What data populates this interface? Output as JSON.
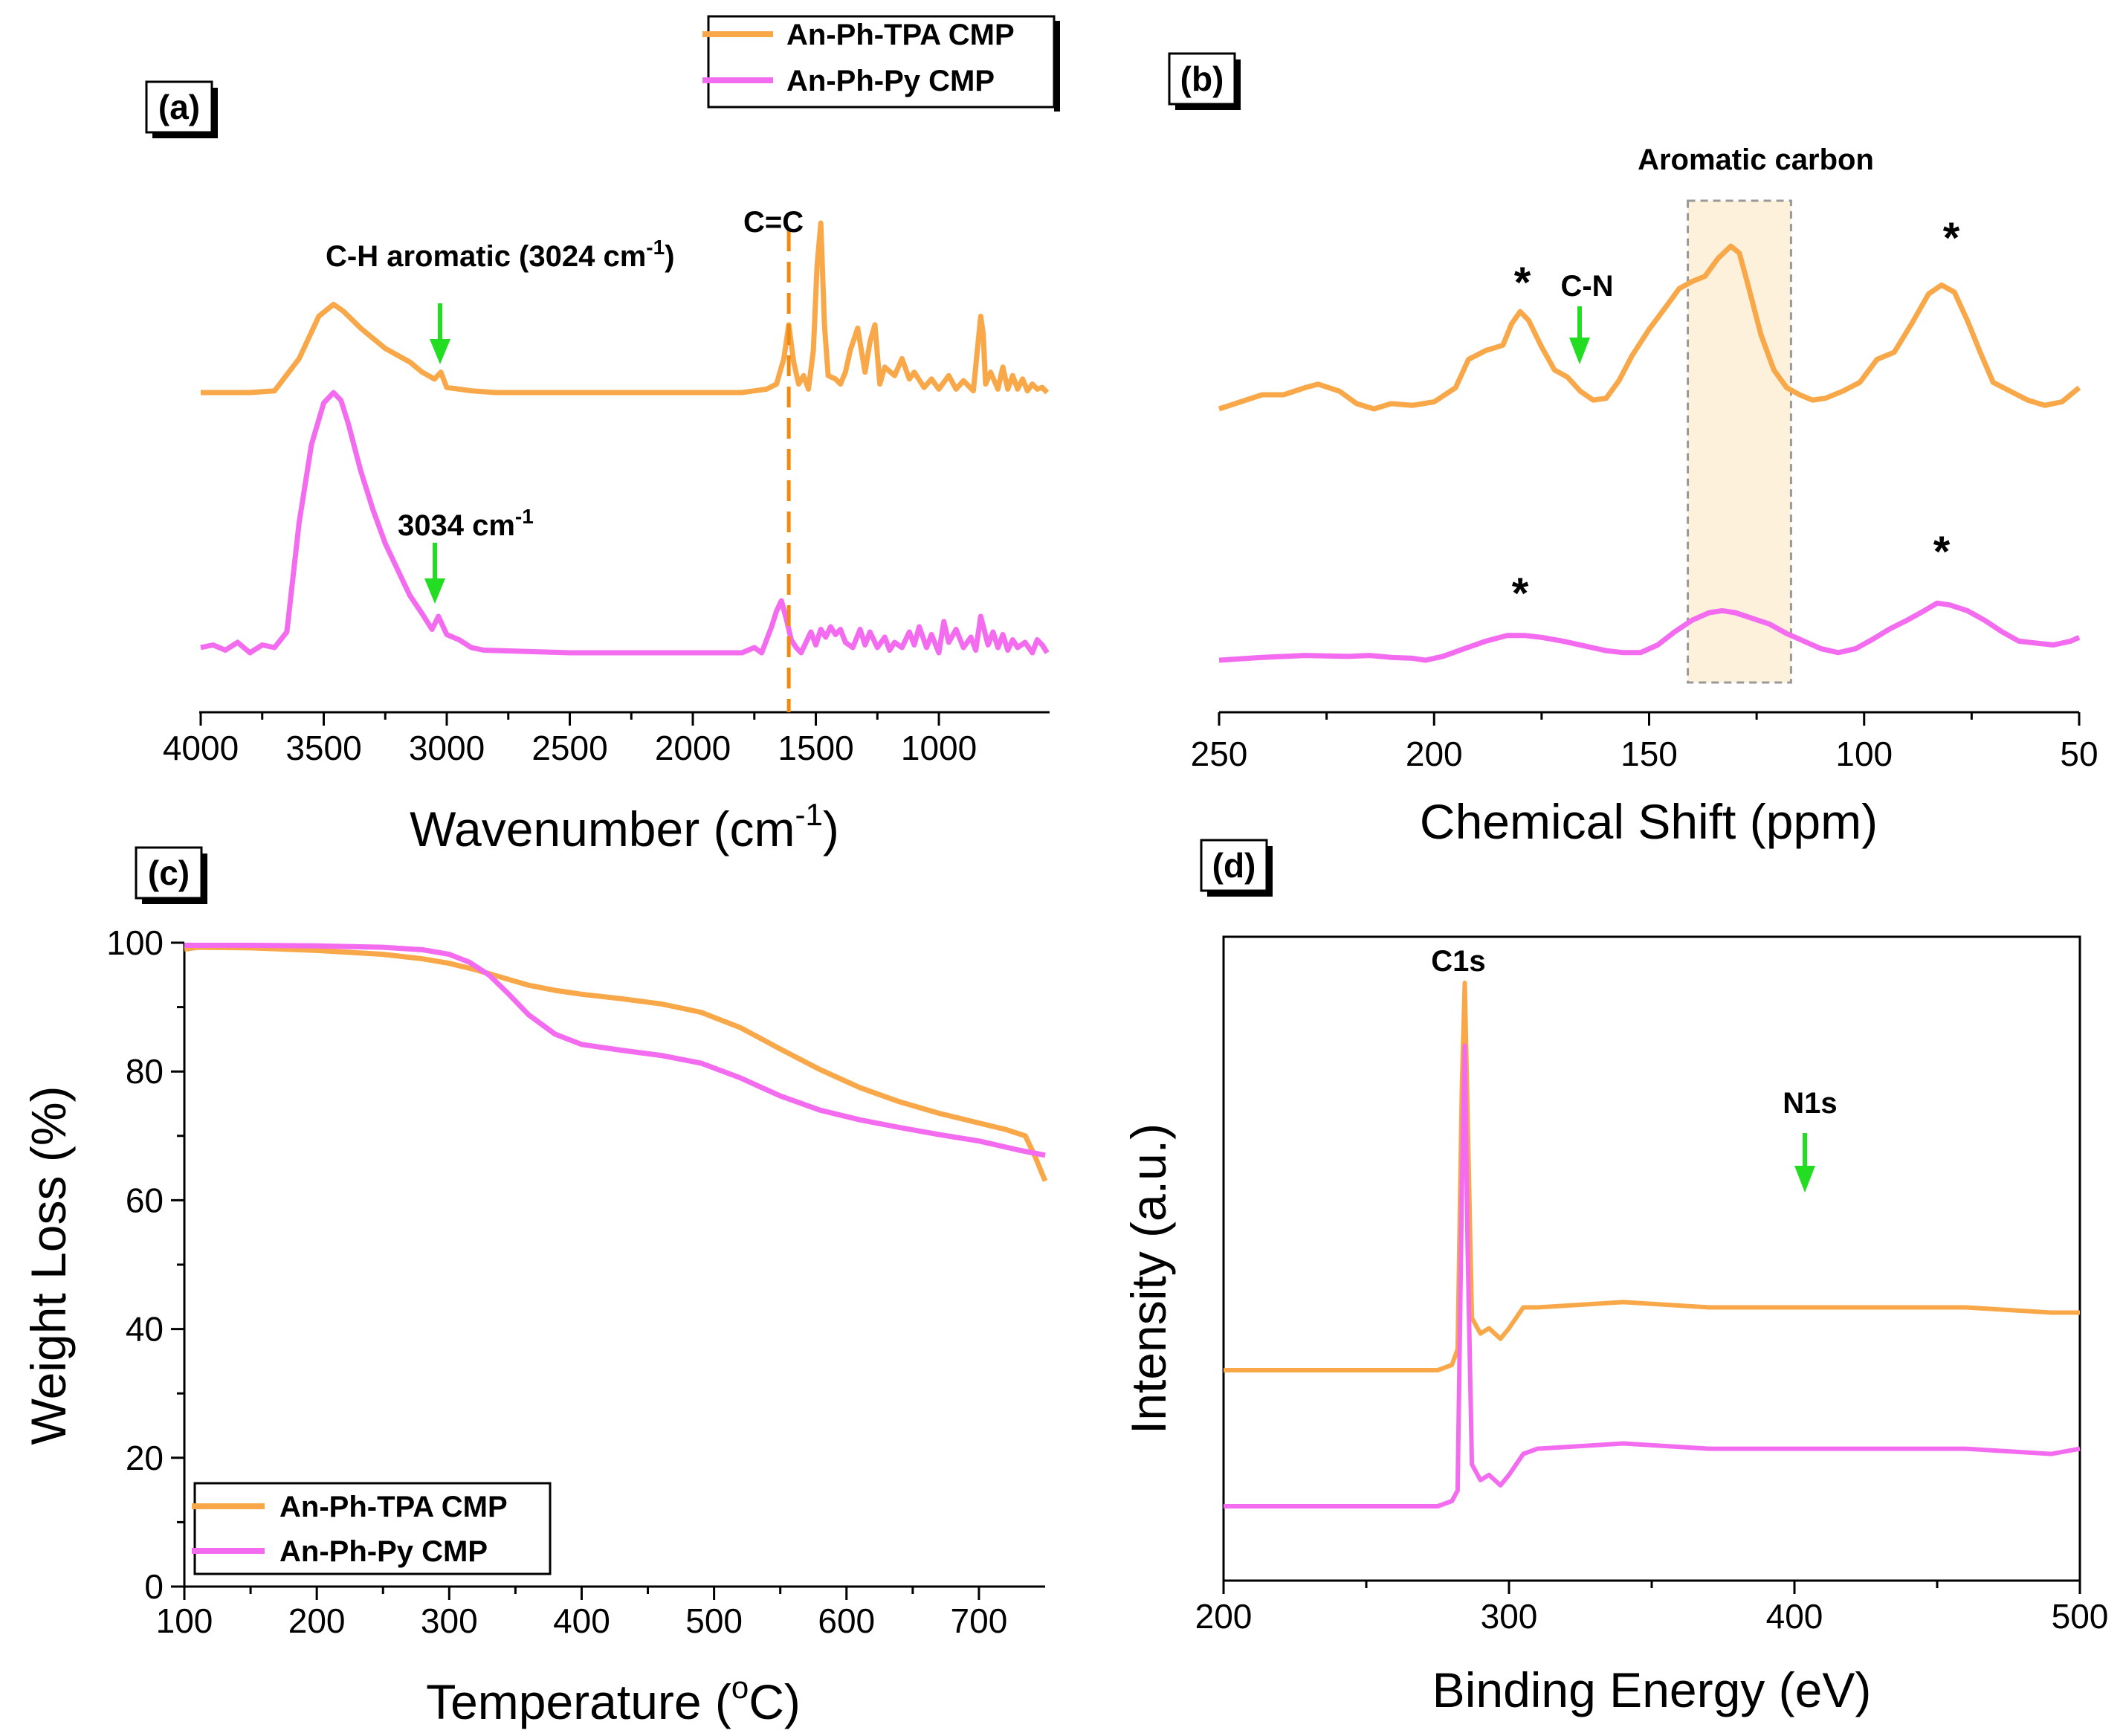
{
  "colors": {
    "orange": "#f8a848",
    "magenta": "#f36cf0",
    "arrow": "#22dd22",
    "highlight_fill": "#fdf1dc",
    "highlight_stroke": "#999999"
  },
  "legend_top": {
    "entries": [
      "An-Ph-TPA CMP",
      "An-Ph-Py CMP"
    ]
  },
  "panels": {
    "a": {
      "tag": "(a)",
      "annotations": {
        "ch_aromatic": "C-H aromatic (3024 cm",
        "ch_aromatic_sup": "-1",
        "ch_aromatic_close": ")",
        "cc": "C=C",
        "py_peak": "3034 cm",
        "py_peak_sup": "-1"
      }
    },
    "b": {
      "tag": "(b)",
      "annotations": {
        "aromatic_carbon": "Aromatic carbon",
        "cn": "C-N",
        "star": "*"
      }
    },
    "c": {
      "tag": "(c)",
      "legend": [
        "An-Ph-TPA CMP",
        "An-Ph-Py CMP"
      ]
    },
    "d": {
      "tag": "(d)",
      "annotations": {
        "c1s": "C1s",
        "n1s": "N1s"
      }
    }
  },
  "chart_data": [
    {
      "id": "a",
      "type": "line",
      "title": "",
      "xlabel": "Wavenumber (cm",
      "xlabel_sup": "-1",
      "xlabel_close": ")",
      "ylabel": "",
      "xlim": [
        4000,
        550
      ],
      "xticks": [
        4000,
        3500,
        3000,
        2500,
        2000,
        1500,
        1000
      ],
      "xtick_labels": [
        "4000",
        "3500",
        "3000",
        "2500",
        "2000",
        "1500",
        "1000"
      ],
      "series": [
        {
          "name": "An-Ph-TPA CMP",
          "x": [
            4000,
            3800,
            3700,
            3600,
            3520,
            3460,
            3420,
            3350,
            3250,
            3150,
            3100,
            3050,
            3024,
            3000,
            2950,
            2900,
            2800,
            2500,
            2000,
            1800,
            1700,
            1660,
            1630,
            1610,
            1590,
            1570,
            1550,
            1530,
            1510,
            1495,
            1480,
            1465,
            1450,
            1420,
            1400,
            1380,
            1360,
            1330,
            1300,
            1280,
            1260,
            1240,
            1220,
            1180,
            1150,
            1120,
            1100,
            1060,
            1030,
            1000,
            960,
            930,
            900,
            860,
            830,
            820,
            810,
            790,
            760,
            740,
            720,
            700,
            680,
            660,
            640,
            620,
            600,
            580,
            560
          ],
          "y": [
            0.0,
            0.0,
            0.01,
            0.2,
            0.45,
            0.52,
            0.48,
            0.38,
            0.26,
            0.18,
            0.12,
            0.08,
            0.12,
            0.03,
            0.02,
            0.01,
            0.0,
            0.0,
            0.0,
            0.0,
            0.02,
            0.05,
            0.2,
            0.4,
            0.18,
            0.05,
            0.1,
            0.02,
            0.25,
            0.75,
            1.0,
            0.4,
            0.1,
            0.08,
            0.05,
            0.12,
            0.25,
            0.38,
            0.12,
            0.3,
            0.4,
            0.05,
            0.15,
            0.1,
            0.2,
            0.08,
            0.12,
            0.03,
            0.08,
            0.02,
            0.1,
            0.02,
            0.07,
            0.01,
            0.45,
            0.35,
            0.05,
            0.12,
            0.02,
            0.15,
            0.02,
            0.1,
            0.02,
            0.08,
            0.01,
            0.05,
            0.02,
            0.03,
            0.0
          ]
        },
        {
          "name": "An-Ph-Py CMP",
          "x": [
            4000,
            3950,
            3900,
            3850,
            3800,
            3750,
            3700,
            3650,
            3600,
            3550,
            3500,
            3460,
            3430,
            3400,
            3350,
            3300,
            3250,
            3200,
            3150,
            3100,
            3060,
            3034,
            3000,
            2950,
            2900,
            2850,
            2500,
            2000,
            1800,
            1750,
            1720,
            1700,
            1680,
            1660,
            1640,
            1620,
            1600,
            1580,
            1560,
            1540,
            1520,
            1500,
            1480,
            1460,
            1440,
            1420,
            1400,
            1380,
            1350,
            1320,
            1300,
            1280,
            1250,
            1220,
            1200,
            1180,
            1150,
            1120,
            1100,
            1080,
            1050,
            1030,
            1000,
            980,
            960,
            930,
            900,
            870,
            850,
            830,
            800,
            780,
            760,
            740,
            720,
            700,
            680,
            650,
            620,
            600,
            580,
            560
          ],
          "y": [
            0.02,
            0.03,
            0.01,
            0.04,
            0.0,
            0.03,
            0.02,
            0.08,
            0.5,
            0.8,
            0.96,
            1.0,
            0.97,
            0.88,
            0.7,
            0.55,
            0.42,
            0.32,
            0.22,
            0.15,
            0.09,
            0.14,
            0.07,
            0.05,
            0.02,
            0.01,
            0.0,
            0.0,
            0.0,
            0.02,
            0.0,
            0.05,
            0.1,
            0.16,
            0.2,
            0.13,
            0.05,
            0.02,
            0.0,
            0.04,
            0.08,
            0.03,
            0.09,
            0.06,
            0.1,
            0.07,
            0.09,
            0.04,
            0.02,
            0.09,
            0.03,
            0.08,
            0.02,
            0.06,
            0.01,
            0.04,
            0.02,
            0.08,
            0.03,
            0.1,
            0.02,
            0.07,
            0.0,
            0.12,
            0.04,
            0.09,
            0.02,
            0.06,
            0.01,
            0.14,
            0.03,
            0.08,
            0.02,
            0.07,
            0.01,
            0.05,
            0.02,
            0.04,
            0.0,
            0.05,
            0.03,
            0.0
          ]
        }
      ]
    },
    {
      "id": "b",
      "type": "line",
      "title": "",
      "xlabel": "Chemical Shift (ppm)",
      "ylabel": "",
      "xlim": [
        250,
        50
      ],
      "xticks": [
        250,
        200,
        150,
        100,
        50
      ],
      "xtick_labels": [
        "250",
        "200",
        "150",
        "100",
        "50"
      ],
      "highlight_range": [
        141,
        117
      ],
      "series": [
        {
          "name": "An-Ph-TPA CMP",
          "x": [
            250,
            245,
            240,
            235,
            230,
            227,
            222,
            218,
            214,
            210,
            205,
            200,
            195,
            192,
            188,
            184,
            182,
            180,
            178,
            175,
            172,
            169,
            166,
            163,
            160,
            157,
            154,
            150,
            146,
            143,
            140,
            137,
            134,
            131,
            129,
            127,
            124,
            121,
            118,
            115,
            112,
            109,
            105,
            101,
            97,
            93,
            89,
            85,
            82,
            79,
            76,
            73,
            70,
            66,
            62,
            58,
            54,
            50
          ],
          "y": [
            0.0,
            0.04,
            0.08,
            0.08,
            0.12,
            0.14,
            0.1,
            0.03,
            0.0,
            0.03,
            0.02,
            0.04,
            0.12,
            0.28,
            0.33,
            0.36,
            0.48,
            0.55,
            0.5,
            0.35,
            0.22,
            0.18,
            0.1,
            0.05,
            0.06,
            0.16,
            0.3,
            0.45,
            0.58,
            0.68,
            0.72,
            0.75,
            0.85,
            0.92,
            0.88,
            0.7,
            0.42,
            0.22,
            0.12,
            0.08,
            0.05,
            0.06,
            0.1,
            0.15,
            0.28,
            0.32,
            0.48,
            0.65,
            0.7,
            0.66,
            0.5,
            0.32,
            0.15,
            0.1,
            0.05,
            0.02,
            0.04,
            0.12
          ]
        },
        {
          "name": "An-Ph-Py CMP",
          "x": [
            250,
            240,
            230,
            220,
            215,
            210,
            205,
            202,
            198,
            193,
            188,
            183,
            179,
            175,
            170,
            165,
            160,
            156,
            152,
            148,
            144,
            140,
            136,
            133,
            130,
            126,
            122,
            118,
            114,
            110,
            106,
            102,
            98,
            94,
            90,
            86,
            83,
            80,
            76,
            72,
            68,
            64,
            60,
            56,
            52,
            50
          ],
          "y": [
            0.0,
            0.03,
            0.05,
            0.04,
            0.05,
            0.03,
            0.02,
            0.0,
            0.04,
            0.12,
            0.2,
            0.26,
            0.26,
            0.24,
            0.2,
            0.15,
            0.1,
            0.08,
            0.08,
            0.16,
            0.3,
            0.42,
            0.5,
            0.52,
            0.5,
            0.44,
            0.38,
            0.28,
            0.2,
            0.12,
            0.08,
            0.12,
            0.22,
            0.33,
            0.42,
            0.52,
            0.6,
            0.58,
            0.52,
            0.42,
            0.3,
            0.2,
            0.18,
            0.16,
            0.2,
            0.24
          ]
        }
      ]
    },
    {
      "id": "c",
      "type": "line",
      "title": "",
      "xlabel": "Temperature (",
      "xlabel_sup": "o",
      "xlabel_close": "C)",
      "ylabel": "Weight Loss (%)",
      "xlim": [
        100,
        750
      ],
      "ylim": [
        0,
        100
      ],
      "xticks": [
        100,
        200,
        300,
        400,
        500,
        600,
        700
      ],
      "xtick_labels": [
        "100",
        "200",
        "300",
        "400",
        "500",
        "600",
        "700"
      ],
      "yticks": [
        0,
        20,
        40,
        60,
        80,
        100
      ],
      "ytick_labels": [
        "0",
        "20",
        "40",
        "60",
        "80",
        "100"
      ],
      "series": [
        {
          "name": "An-Ph-TPA CMP",
          "x": [
            100,
            110,
            150,
            200,
            250,
            280,
            300,
            320,
            340,
            360,
            380,
            400,
            430,
            460,
            490,
            520,
            550,
            580,
            610,
            640,
            670,
            700,
            720,
            735,
            742,
            750
          ],
          "y": [
            99.0,
            99.3,
            99.2,
            98.8,
            98.2,
            97.5,
            96.8,
            95.8,
            94.6,
            93.4,
            92.6,
            92.0,
            91.3,
            90.5,
            89.2,
            86.8,
            83.5,
            80.3,
            77.5,
            75.3,
            73.5,
            72.0,
            71.0,
            70.0,
            67.0,
            63.0
          ]
        },
        {
          "name": "An-Ph-Py CMP",
          "x": [
            100,
            150,
            200,
            250,
            280,
            300,
            315,
            330,
            345,
            360,
            380,
            400,
            430,
            460,
            490,
            520,
            550,
            580,
            610,
            640,
            670,
            700,
            730,
            750
          ],
          "y": [
            99.6,
            99.6,
            99.5,
            99.3,
            98.9,
            98.2,
            97.0,
            95.0,
            92.0,
            88.8,
            85.8,
            84.2,
            83.3,
            82.5,
            81.3,
            79.0,
            76.2,
            74.0,
            72.5,
            71.3,
            70.2,
            69.2,
            67.8,
            67.0
          ]
        }
      ]
    },
    {
      "id": "d",
      "type": "line",
      "title": "",
      "xlabel": "Binding Energy (eV)",
      "ylabel": "Intensity (a.u.)",
      "xlim": [
        200,
        500
      ],
      "xticks": [
        200,
        300,
        400,
        500
      ],
      "xtick_labels": [
        "200",
        "300",
        "400",
        "500"
      ],
      "series": [
        {
          "name": "An-Ph-TPA CMP",
          "x": [
            200,
            220,
            240,
            260,
            275,
            280,
            282,
            283.5,
            284.5,
            285.5,
            287,
            290,
            293,
            297,
            300,
            305,
            310,
            340,
            370,
            400,
            430,
            460,
            490,
            500
          ],
          "y": [
            0.26,
            0.26,
            0.26,
            0.26,
            0.26,
            0.27,
            0.3,
            0.8,
            1.0,
            0.75,
            0.36,
            0.33,
            0.34,
            0.32,
            0.34,
            0.38,
            0.38,
            0.39,
            0.38,
            0.38,
            0.38,
            0.38,
            0.37,
            0.37
          ]
        },
        {
          "name": "An-Ph-Py CMP",
          "x": [
            200,
            220,
            240,
            260,
            275,
            280,
            282,
            283.5,
            284.5,
            285.5,
            287,
            290,
            293,
            297,
            300,
            305,
            310,
            340,
            370,
            400,
            430,
            460,
            490,
            500
          ],
          "y": [
            0.0,
            0.0,
            0.0,
            0.0,
            0.0,
            0.01,
            0.03,
            0.6,
            0.88,
            0.5,
            0.08,
            0.05,
            0.06,
            0.04,
            0.06,
            0.1,
            0.11,
            0.12,
            0.11,
            0.11,
            0.11,
            0.11,
            0.1,
            0.11
          ]
        }
      ]
    }
  ]
}
